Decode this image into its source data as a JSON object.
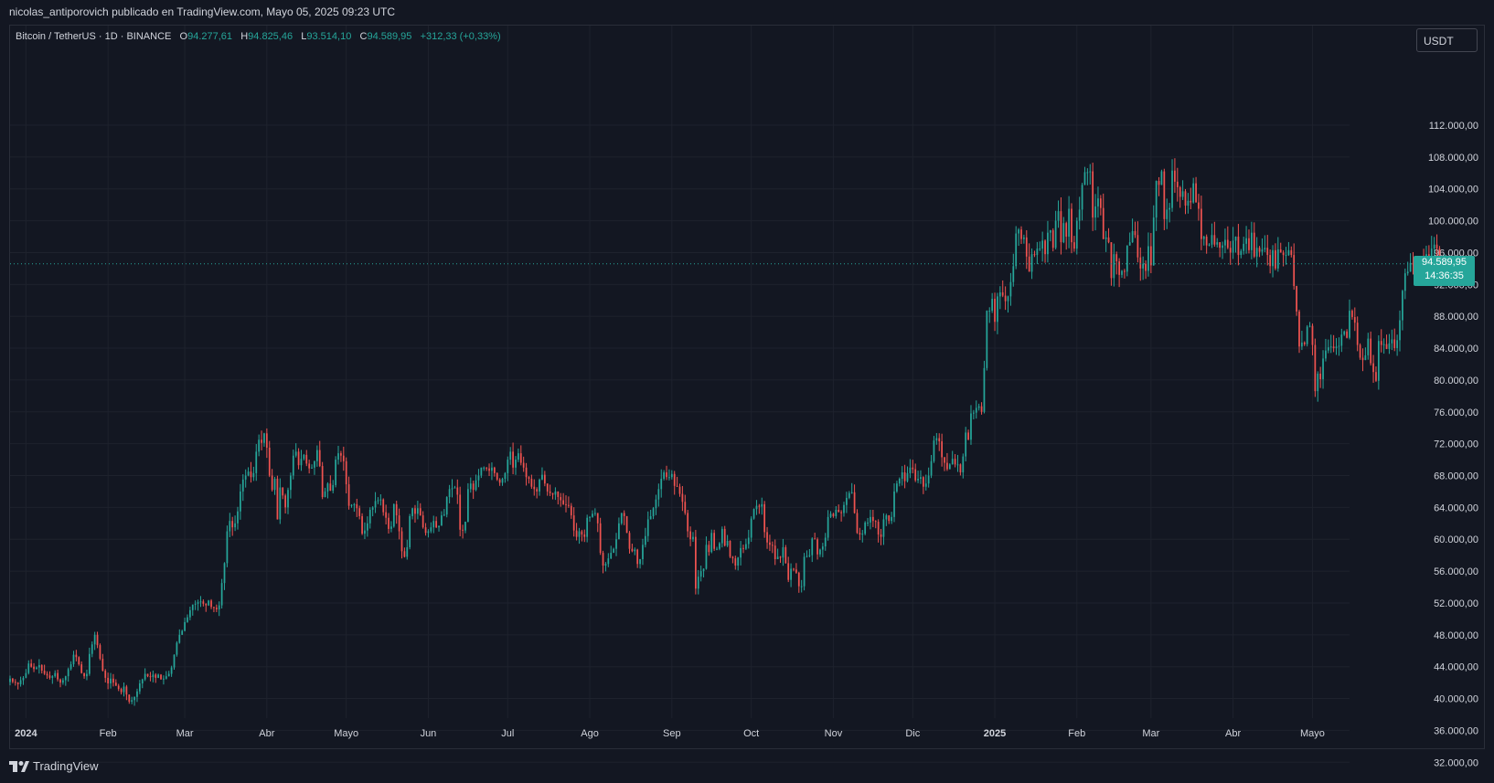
{
  "header": {
    "publisher": "nicolas_antiporovich publicado en TradingView.com, Mayo 05, 2025 09:23 UTC"
  },
  "legend": {
    "symbol": "Bitcoin / TetherUS · 1D · BINANCE",
    "o_label": "O",
    "open": "94.277,61",
    "h_label": "H",
    "high": "94.825,46",
    "l_label": "L",
    "low": "93.514,10",
    "c_label": "C",
    "close": "94.589,95",
    "change": "+312,33 (+0,33%)"
  },
  "currency_button": "USDT",
  "last_price": {
    "price": "94.589,95",
    "countdown": "14:36:35"
  },
  "footer": {
    "brand": "TradingView"
  },
  "colors": {
    "up": "#26a69a",
    "down": "#ef5350",
    "background": "#131722",
    "grid": "#1e222d"
  },
  "chart_data": {
    "type": "candlestick",
    "ylim": [
      30000,
      114000
    ],
    "y_ticks": [
      32000,
      36000,
      40000,
      44000,
      48000,
      52000,
      56000,
      60000,
      64000,
      68000,
      72000,
      76000,
      80000,
      84000,
      88000,
      92000,
      96000,
      100000,
      104000,
      108000,
      112000
    ],
    "y_tick_labels": [
      "32.000,00",
      "36.000,00",
      "40.000,00",
      "44.000,00",
      "48.000,00",
      "52.000,00",
      "56.000,00",
      "60.000,00",
      "64.000,00",
      "68.000,00",
      "72.000,00",
      "76.000,00",
      "80.000,00",
      "84.000,00",
      "88.000,00",
      "92.000,00",
      "96.000,00",
      "100.000,00",
      "104.000,00",
      "108.000,00",
      "112.000,00"
    ],
    "x_range": [
      "2023-12-26",
      "2025-05-15"
    ],
    "x_ticks": [
      {
        "date": "2024-01-01",
        "label": "2024",
        "bold": true
      },
      {
        "date": "2024-02-01",
        "label": "Feb"
      },
      {
        "date": "2024-03-01",
        "label": "Mar"
      },
      {
        "date": "2024-04-01",
        "label": "Abr"
      },
      {
        "date": "2024-05-01",
        "label": "Mayo"
      },
      {
        "date": "2024-06-01",
        "label": "Jun"
      },
      {
        "date": "2024-07-01",
        "label": "Jul"
      },
      {
        "date": "2024-08-01",
        "label": "Ago"
      },
      {
        "date": "2024-09-01",
        "label": "Sep"
      },
      {
        "date": "2024-10-01",
        "label": "Oct"
      },
      {
        "date": "2024-11-01",
        "label": "Nov"
      },
      {
        "date": "2024-12-01",
        "label": "Dic"
      },
      {
        "date": "2025-01-01",
        "label": "2025",
        "bold": true
      },
      {
        "date": "2025-02-01",
        "label": "Feb"
      },
      {
        "date": "2025-03-01",
        "label": "Mar"
      },
      {
        "date": "2025-04-01",
        "label": "Abr"
      },
      {
        "date": "2025-05-01",
        "label": "Mayo"
      }
    ],
    "series_start": "2023-12-26",
    "closes": [
      42500,
      42100,
      42000,
      41800,
      42300,
      42600,
      43200,
      44400,
      44000,
      43700,
      43900,
      44200,
      43500,
      43100,
      42900,
      42600,
      42800,
      43200,
      42400,
      42000,
      42300,
      42800,
      43700,
      44300,
      45500,
      45200,
      44300,
      43200,
      42800,
      43100,
      45600,
      46800,
      48000,
      46700,
      45000,
      43500,
      42600,
      41900,
      42500,
      42000,
      41600,
      41200,
      40800,
      41500,
      40500,
      39600,
      39800,
      40200,
      40900,
      41900,
      42400,
      43100,
      42800,
      42700,
      43000,
      42600,
      43000,
      42400,
      42500,
      42800,
      43100,
      43900,
      45500,
      47000,
      48000,
      48500,
      49600,
      50200,
      51100,
      51800,
      51900,
      52100,
      52200,
      51900,
      51700,
      52300,
      51500,
      51400,
      51200,
      51700,
      54500,
      57000,
      61000,
      62300,
      61500,
      62000,
      63500,
      66000,
      67500,
      68000,
      68500,
      67800,
      68300,
      71000,
      72500,
      72100,
      73300,
      71500,
      68000,
      66200,
      67600,
      62500,
      66500,
      65500,
      64000,
      66200,
      68000,
      70500,
      71000,
      69300,
      70100,
      70600,
      69500,
      68900,
      69000,
      69800,
      71200,
      69200,
      65300,
      66000,
      67000,
      66100,
      66800,
      70000,
      70800,
      70500,
      69800,
      66900,
      64200,
      64300,
      64400,
      63900,
      62900,
      60700,
      61100,
      62000,
      63700,
      64000,
      64800,
      64900,
      65000,
      63400,
      62700,
      61300,
      61600,
      64400,
      63000,
      61000,
      58500,
      57800,
      59000,
      62900,
      63900,
      63200,
      63900,
      63000,
      61500,
      60800,
      61000,
      61500,
      62300,
      61500,
      61700,
      63000,
      63100,
      65300,
      66300,
      66400,
      66500,
      65600,
      61200,
      61100,
      62200,
      66300,
      67000,
      66200,
      67400,
      68000,
      69000,
      69000,
      68900,
      68600,
      69000,
      68300,
      67500,
      67100,
      67600,
      68300,
      70000,
      71000,
      69000,
      70000,
      70800,
      69600,
      69000,
      67800,
      67600,
      66600,
      66300,
      66000,
      67500,
      68100,
      67000,
      66000,
      65800,
      65600,
      66000,
      65300,
      64900,
      64400,
      64300,
      64200,
      63000,
      61100,
      60300,
      61000,
      60600,
      60300,
      62700,
      62800,
      63200,
      63300,
      62000,
      58300,
      56700,
      56900,
      57600,
      58300,
      58800,
      60000,
      62000,
      63300,
      62900,
      60800,
      58800,
      58500,
      58700,
      56900,
      57500,
      59300,
      60400,
      62500,
      62900,
      63900,
      65000,
      66300,
      67600,
      68400,
      67800,
      67800,
      68200,
      66700,
      66600,
      65700,
      64700,
      63300,
      61000,
      60000,
      60300,
      53800,
      55300,
      56000,
      56300,
      59300,
      58400,
      60800,
      58800,
      58800,
      59500,
      61300,
      59200,
      59800,
      57800,
      57600,
      56700,
      57700,
      58900,
      58800,
      59400,
      60200,
      62600,
      63800,
      64200,
      64100,
      64400,
      60900,
      59600,
      59300,
      59200,
      57500,
      57800,
      57700,
      59000,
      57000,
      54900,
      56300,
      56200,
      55800,
      54100,
      54100,
      57800,
      57900,
      58000,
      60100,
      60000,
      58100,
      58700,
      59100,
      60200,
      62800,
      63200,
      62900,
      63700,
      63400,
      63300,
      64300,
      65200,
      65800,
      65900,
      63300,
      60800,
      60600,
      60700,
      62100,
      62100,
      62800,
      62300,
      62200,
      60600,
      60300,
      62500,
      63000,
      62300,
      62800,
      66000,
      67000,
      67600,
      68400,
      67300,
      68300,
      69000,
      68800,
      67400,
      67600,
      67800,
      66600,
      67000,
      68000,
      69800,
      72400,
      72700,
      72300,
      70300,
      69600,
      68800,
      69400,
      70100,
      69400,
      69400,
      68400,
      70400,
      73400,
      72500,
      75800,
      75900,
      76500,
      76700,
      76000,
      81500,
      88700,
      88700,
      90200,
      87300,
      90500,
      91000,
      90600,
      89900,
      90500,
      92300,
      94300,
      98400,
      98900,
      97700,
      97900,
      95500,
      93600,
      95800,
      95700,
      96500,
      96500,
      97500,
      95800,
      98500,
      98800,
      96600,
      100000,
      101200,
      97300,
      99700,
      98000,
      101500,
      97300,
      96500,
      100000,
      101400,
      104500,
      106100,
      106100,
      106200,
      100400,
      101800,
      102800,
      101600,
      97700,
      97900,
      97300,
      92800,
      95800,
      94900,
      93200,
      93700,
      93600,
      96900,
      97300,
      98700,
      98200,
      95400,
      94000,
      94600,
      93700,
      96800,
      94400,
      100400,
      105000,
      104500,
      106200,
      100200,
      101400,
      101600,
      106300,
      104900,
      104200,
      103000,
      103700,
      101900,
      102500,
      102300,
      104700,
      102300,
      101500,
      97700,
      98000,
      96900,
      97000,
      98200,
      97000,
      97300,
      96600,
      96900,
      97600,
      96600,
      96000,
      97500,
      98000,
      95700,
      96200,
      97100,
      97800,
      96300,
      98500,
      95500,
      96600,
      96100,
      96400,
      96600,
      95700,
      94300,
      96300,
      94000,
      96400,
      96000,
      95700,
      95700,
      96300,
      95700,
      91800,
      88600,
      84200,
      84700,
      84500,
      86700,
      86800,
      84400,
      78600,
      80800,
      80100,
      82700,
      83700,
      84100,
      84200,
      84000,
      84200,
      84300,
      85700,
      86100,
      85300,
      88700,
      87900,
      87200,
      84400,
      82800,
      82500,
      83100,
      85200,
      82100,
      81000,
      79900,
      84900,
      84400,
      84500,
      83900,
      84600,
      85100,
      84000,
      85000,
      87500,
      91200,
      93400,
      93600,
      94700,
      94500,
      93000,
      95000,
      94800,
      94300,
      95800,
      94200,
      96500,
      97000,
      96500,
      94300,
      94278,
      94590
    ],
    "spread_pct": 0.018
  }
}
